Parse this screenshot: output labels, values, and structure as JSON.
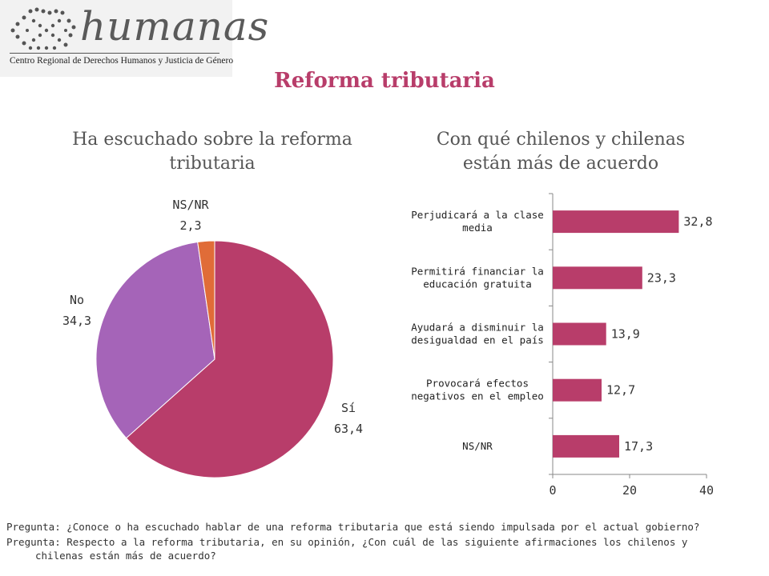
{
  "logo": {
    "name": "humanas",
    "subtitle": "Centro Regional de Derechos Humanos y Justicia de Género"
  },
  "title": "Reforma tributaria",
  "colors": {
    "accent": "#b83d6a",
    "no": "#a564b8",
    "nsnr": "#e06c38",
    "bar": "#b83d6a"
  },
  "chart_data": [
    {
      "type": "pie",
      "title": [
        "Ha escuchado sobre la reforma",
        "tributaria"
      ],
      "slices": [
        {
          "label": "Sí",
          "value": 63.4,
          "display": "63,4"
        },
        {
          "label": "No",
          "value": 34.3,
          "display": "34,3"
        },
        {
          "label": "NS/NR",
          "value": 2.3,
          "display": "2,3"
        }
      ]
    },
    {
      "type": "bar",
      "orientation": "horizontal",
      "title": [
        "Con qué chilenos y chilenas",
        "están más de acuerdo"
      ],
      "categories": [
        [
          "Perjudicará a la clase",
          "media"
        ],
        [
          "Permitirá financiar la",
          "educación gratuita"
        ],
        [
          "Ayudará a disminuir la",
          "desigualdad en el país"
        ],
        [
          "Provocará efectos",
          "negativos en el empleo"
        ],
        [
          "NS/NR"
        ]
      ],
      "values": [
        32.8,
        23.3,
        13.9,
        12.7,
        17.3
      ],
      "value_labels": [
        "32,8",
        "23,3",
        "13,9",
        "12,7",
        "17,3"
      ],
      "xlim": [
        0,
        40
      ],
      "xticks": [
        "0",
        "20",
        "40"
      ],
      "grid": false
    }
  ],
  "footer": {
    "q1": "Pregunta: ¿Conoce o ha escuchado hablar de una reforma tributaria que está siendo impulsada por el actual gobierno?",
    "q2_line1": "Pregunta: Respecto a la reforma tributaria, en su opinión, ¿Con cuál de las siguiente afirmaciones los chilenos y",
    "q2_line2": "chilenas están más de acuerdo?"
  }
}
